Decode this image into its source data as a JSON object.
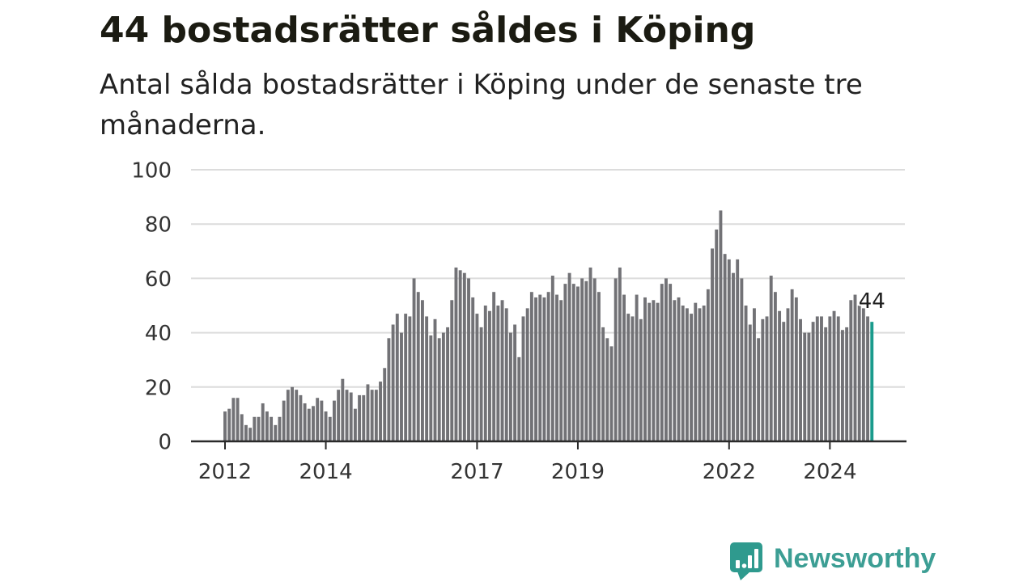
{
  "chart_data": {
    "type": "bar",
    "title": "44 bostadsrätter såldes i Köping",
    "subtitle": "Antal sålda bostadsrätter i Köping under de senaste tre månaderna.",
    "x": [
      "2012-01",
      "2012-02",
      "2012-03",
      "2012-04",
      "2012-05",
      "2012-06",
      "2012-07",
      "2012-08",
      "2012-09",
      "2012-10",
      "2012-11",
      "2012-12",
      "2013-01",
      "2013-02",
      "2013-03",
      "2013-04",
      "2013-05",
      "2013-06",
      "2013-07",
      "2013-08",
      "2013-09",
      "2013-10",
      "2013-11",
      "2013-12",
      "2014-01",
      "2014-02",
      "2014-03",
      "2014-04",
      "2014-05",
      "2014-06",
      "2014-07",
      "2014-08",
      "2014-09",
      "2014-10",
      "2014-11",
      "2014-12",
      "2015-01",
      "2015-02",
      "2015-03",
      "2015-04",
      "2015-05",
      "2015-06",
      "2015-07",
      "2015-08",
      "2015-09",
      "2015-10",
      "2015-11",
      "2015-12",
      "2016-01",
      "2016-02",
      "2016-03",
      "2016-04",
      "2016-05",
      "2016-06",
      "2016-07",
      "2016-08",
      "2016-09",
      "2016-10",
      "2016-11",
      "2016-12",
      "2017-01",
      "2017-02",
      "2017-03",
      "2017-04",
      "2017-05",
      "2017-06",
      "2017-07",
      "2017-08",
      "2017-09",
      "2017-10",
      "2017-11",
      "2017-12",
      "2018-01",
      "2018-02",
      "2018-03",
      "2018-04",
      "2018-05",
      "2018-06",
      "2018-07",
      "2018-08",
      "2018-09",
      "2018-10",
      "2018-11",
      "2018-12",
      "2019-01",
      "2019-02",
      "2019-03",
      "2019-04",
      "2019-05",
      "2019-06",
      "2019-07",
      "2019-08",
      "2019-09",
      "2019-10",
      "2019-11",
      "2019-12",
      "2020-01",
      "2020-02",
      "2020-03",
      "2020-04",
      "2020-05",
      "2020-06",
      "2020-07",
      "2020-08",
      "2020-09",
      "2020-10",
      "2020-11",
      "2020-12",
      "2021-01",
      "2021-02",
      "2021-03",
      "2021-04",
      "2021-05",
      "2021-06",
      "2021-07",
      "2021-08",
      "2021-09",
      "2021-10",
      "2021-11",
      "2021-12",
      "2022-01",
      "2022-02",
      "2022-03",
      "2022-04",
      "2022-05",
      "2022-06",
      "2022-07",
      "2022-08",
      "2022-09",
      "2022-10",
      "2022-11",
      "2022-12",
      "2023-01",
      "2023-02",
      "2023-03",
      "2023-04",
      "2023-05",
      "2023-06",
      "2023-07",
      "2023-08",
      "2023-09",
      "2023-10",
      "2023-11",
      "2023-12",
      "2024-01",
      "2024-02",
      "2024-03",
      "2024-04",
      "2024-05",
      "2024-06",
      "2024-07",
      "2024-08",
      "2024-09",
      "2024-10",
      "2024-11"
    ],
    "values": [
      11,
      12,
      16,
      16,
      10,
      6,
      5,
      9,
      9,
      14,
      11,
      9,
      6,
      9,
      15,
      19,
      20,
      19,
      17,
      14,
      12,
      13,
      16,
      15,
      11,
      9,
      15,
      19,
      23,
      19,
      18,
      12,
      17,
      17,
      21,
      19,
      19,
      22,
      27,
      38,
      43,
      47,
      40,
      47,
      46,
      60,
      55,
      52,
      46,
      39,
      45,
      38,
      40,
      42,
      52,
      64,
      63,
      62,
      60,
      53,
      47,
      42,
      50,
      48,
      55,
      50,
      52,
      49,
      40,
      43,
      31,
      46,
      49,
      55,
      53,
      54,
      53,
      55,
      61,
      54,
      52,
      58,
      62,
      58,
      57,
      60,
      59,
      64,
      60,
      55,
      42,
      38,
      35,
      60,
      64,
      54,
      47,
      46,
      54,
      45,
      53,
      51,
      52,
      51,
      58,
      60,
      58,
      52,
      53,
      50,
      49,
      47,
      51,
      49,
      50,
      56,
      71,
      78,
      85,
      69,
      67,
      62,
      67,
      60,
      50,
      43,
      49,
      38,
      45,
      46,
      61,
      55,
      48,
      44,
      49,
      56,
      53,
      45,
      40,
      40,
      44,
      46,
      46,
      42,
      46,
      48,
      46,
      41,
      42,
      52,
      54,
      50,
      49,
      46,
      44
    ],
    "xticks": [
      "2012",
      "2014",
      "2017",
      "2019",
      "2022",
      "2024"
    ],
    "yticks": [
      0,
      20,
      40,
      60,
      80,
      100
    ],
    "ylim": [
      0,
      100
    ],
    "grid": true,
    "highlight": {
      "x": "2024-11",
      "label": "44"
    },
    "colors": {
      "bar": "#727276",
      "highlight": "#1a9b8c",
      "grid": "#dcdcdc",
      "axis": "#2a2a2a",
      "tick_text": "#333333",
      "value_label": "#1e1e1e"
    }
  },
  "brand": {
    "name": "Newsworthy",
    "color": "#3c9e94",
    "icon_color": "#2f9a8e"
  }
}
